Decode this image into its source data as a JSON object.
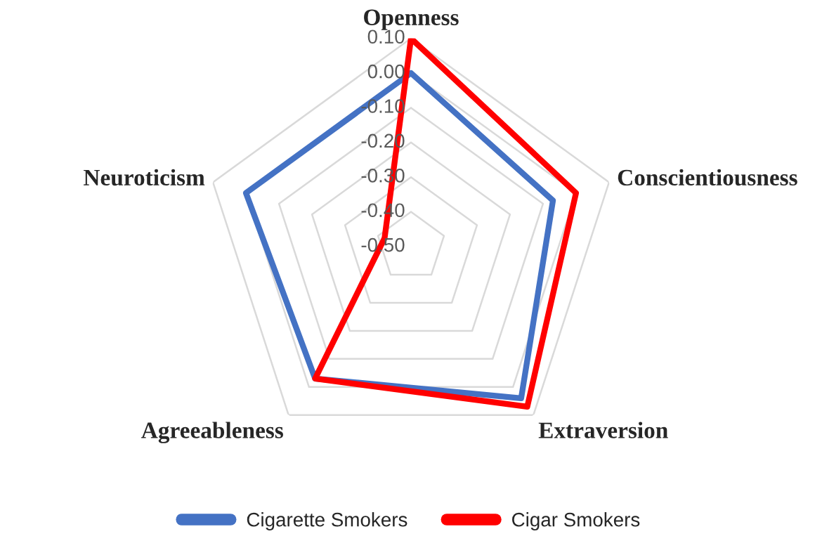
{
  "chart_data": {
    "type": "radar",
    "categories": [
      "Openness",
      "Conscientiousness",
      "Extraversion",
      "Agreeableness",
      "Neuroticism"
    ],
    "series": [
      {
        "name": "Cigarette Smokers",
        "color": "#4472c4",
        "values": [
          0.0,
          -0.07,
          0.04,
          -0.03,
          0.0
        ]
      },
      {
        "name": "Cigar Smokers",
        "color": "#ff0000",
        "values": [
          0.1,
          0.0,
          0.07,
          -0.03,
          -0.42
        ]
      }
    ],
    "ylim": [
      -0.5,
      0.1
    ],
    "yticks": [
      {
        "value": 0.1,
        "label": "0.10"
      },
      {
        "value": 0.0,
        "label": "0.00"
      },
      {
        "value": -0.1,
        "label": "-0.10"
      },
      {
        "value": -0.2,
        "label": "-0.20"
      },
      {
        "value": -0.3,
        "label": "-0.30"
      },
      {
        "value": -0.4,
        "label": "-0.40"
      },
      {
        "value": -0.5,
        "label": "-0.50"
      }
    ],
    "grid": true,
    "legend": "bottom",
    "marker": "none",
    "line_style": "solid"
  }
}
